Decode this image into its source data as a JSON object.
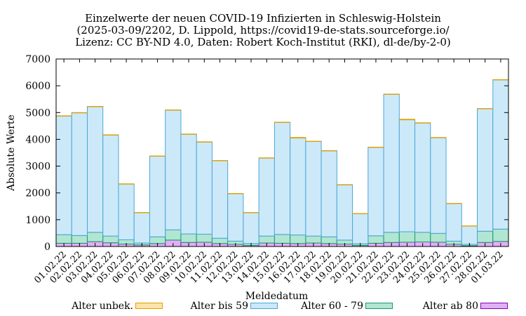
{
  "chart_data": {
    "type": "bar",
    "stacked": true,
    "title": [
      "Einzelwerte der neuen COVID-19 Infizierten in Schleswig-Holstein",
      "(2025-03-09/2202, D. Lippold, https://covid19-de-stats.sourceforge.io/",
      "Lizenz: CC BY-ND 4.0, Daten: Robert Koch-Institut (RKI), dl-de/by-2-0)"
    ],
    "xlabel": "Meldedatum",
    "ylabel": "Absolute Werte",
    "ylim": [
      0,
      7000
    ],
    "yticks": [
      0,
      1000,
      2000,
      3000,
      4000,
      5000,
      6000,
      7000
    ],
    "grid": false,
    "legend_placement": "bottom",
    "categories": [
      "01.02.22",
      "02.02.22",
      "03.02.22",
      "04.02.22",
      "05.02.22",
      "06.02.22",
      "07.02.22",
      "08.02.22",
      "09.02.22",
      "10.02.22",
      "11.02.22",
      "12.02.22",
      "13.02.22",
      "14.02.22",
      "15.02.22",
      "16.02.22",
      "17.02.22",
      "18.02.22",
      "19.02.22",
      "20.02.22",
      "21.02.22",
      "22.02.22",
      "23.02.22",
      "24.02.22",
      "25.02.22",
      "26.02.22",
      "27.02.22",
      "28.02.22",
      "01.03.22"
    ],
    "series": [
      {
        "name": "Alter ab 80",
        "color": "#e0b0f5",
        "stroke": "#8a00b8",
        "values": [
          120,
          120,
          180,
          140,
          90,
          60,
          110,
          240,
          150,
          160,
          110,
          80,
          40,
          130,
          120,
          110,
          130,
          110,
          90,
          40,
          120,
          150,
          160,
          170,
          160,
          80,
          30,
          150,
          190
        ]
      },
      {
        "name": "Alter 60 - 79",
        "color": "#b0e6d2",
        "stroke": "#1a9a6c",
        "values": [
          320,
          290,
          350,
          250,
          160,
          70,
          250,
          380,
          320,
          300,
          200,
          120,
          70,
          260,
          330,
          320,
          260,
          250,
          150,
          60,
          280,
          380,
          390,
          360,
          330,
          120,
          50,
          420,
          460
        ]
      },
      {
        "name": "Alter bis 59",
        "color": "#cce9fa",
        "stroke": "#4aa6d8",
        "values": [
          4430,
          4580,
          4690,
          3770,
          2080,
          1130,
          3010,
          4470,
          3720,
          3440,
          2890,
          1770,
          1150,
          2910,
          4180,
          3620,
          3530,
          3210,
          2060,
          1120,
          3300,
          5150,
          4180,
          4080,
          3570,
          1400,
          680,
          4570,
          5570
        ]
      },
      {
        "name": "Alter unbek.",
        "color": "#fce3a8",
        "stroke": "#e0a000",
        "values": [
          10,
          10,
          10,
          10,
          10,
          10,
          10,
          10,
          10,
          10,
          10,
          10,
          10,
          10,
          10,
          20,
          10,
          10,
          10,
          10,
          10,
          10,
          20,
          10,
          10,
          10,
          10,
          10,
          10
        ]
      }
    ]
  }
}
